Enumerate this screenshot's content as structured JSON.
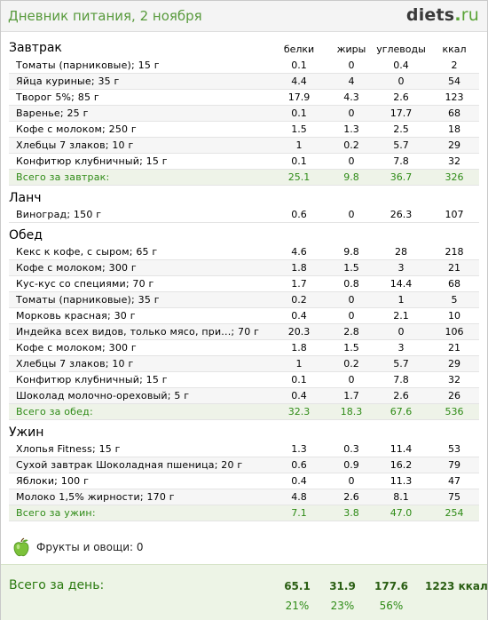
{
  "header": {
    "title": "Дневник питания, 2 ноября",
    "logo_main": "diets",
    "logo_dot": ".",
    "logo_tld": "ru"
  },
  "columns": {
    "protein": "белки",
    "fat": "жиры",
    "carbs": "углеводы",
    "kcal": "ккал"
  },
  "breakfast": {
    "title": "Завтрак",
    "rows": [
      {
        "name": "Томаты (парниковые); 15 г",
        "b": "0.1",
        "j": "0",
        "u": "0.4",
        "k": "2"
      },
      {
        "name": "Яйца куриные; 35 г",
        "b": "4.4",
        "j": "4",
        "u": "0",
        "k": "54"
      },
      {
        "name": "Творог 5%; 85 г",
        "b": "17.9",
        "j": "4.3",
        "u": "2.6",
        "k": "123"
      },
      {
        "name": "Варенье; 25 г",
        "b": "0.1",
        "j": "0",
        "u": "17.7",
        "k": "68"
      },
      {
        "name": "Кофе с молоком; 250 г",
        "b": "1.5",
        "j": "1.3",
        "u": "2.5",
        "k": "18"
      },
      {
        "name": "Хлебцы 7 злаков; 10 г",
        "b": "1",
        "j": "0.2",
        "u": "5.7",
        "k": "29"
      },
      {
        "name": "Конфитюр клубничный; 15 г",
        "b": "0.1",
        "j": "0",
        "u": "7.8",
        "k": "32"
      }
    ],
    "total": {
      "name": "Всего за завтрак:",
      "b": "25.1",
      "j": "9.8",
      "u": "36.7",
      "k": "326"
    }
  },
  "lunch": {
    "title": "Ланч",
    "rows": [
      {
        "name": "Виноград; 150 г",
        "b": "0.6",
        "j": "0",
        "u": "26.3",
        "k": "107"
      }
    ]
  },
  "dinner": {
    "title": "Обед",
    "rows": [
      {
        "name": "Кекс к кофе, с сыром; 65 г",
        "b": "4.6",
        "j": "9.8",
        "u": "28",
        "k": "218"
      },
      {
        "name": "Кофе с молоком; 300 г",
        "b": "1.8",
        "j": "1.5",
        "u": "3",
        "k": "21"
      },
      {
        "name": "Кус-кус со специями; 70 г",
        "b": "1.7",
        "j": "0.8",
        "u": "14.4",
        "k": "68"
      },
      {
        "name": "Томаты (парниковые); 35 г",
        "b": "0.2",
        "j": "0",
        "u": "1",
        "k": "5"
      },
      {
        "name": "Морковь красная; 30 г",
        "b": "0.4",
        "j": "0",
        "u": "2.1",
        "k": "10"
      },
      {
        "name": "Индейка всех видов, только мясо, при...; 70 г",
        "b": "20.3",
        "j": "2.8",
        "u": "0",
        "k": "106"
      },
      {
        "name": "Кофе с молоком; 300 г",
        "b": "1.8",
        "j": "1.5",
        "u": "3",
        "k": "21"
      },
      {
        "name": "Хлебцы 7 злаков; 10 г",
        "b": "1",
        "j": "0.2",
        "u": "5.7",
        "k": "29"
      },
      {
        "name": "Конфитюр клубничный; 15 г",
        "b": "0.1",
        "j": "0",
        "u": "7.8",
        "k": "32"
      },
      {
        "name": "Шоколад молочно-ореховый; 5 г",
        "b": "0.4",
        "j": "1.7",
        "u": "2.6",
        "k": "26"
      }
    ],
    "total": {
      "name": "Всего за обед:",
      "b": "32.3",
      "j": "18.3",
      "u": "67.6",
      "k": "536"
    }
  },
  "supper": {
    "title": "Ужин",
    "rows": [
      {
        "name": "Хлопья Fitness; 15 г",
        "b": "1.3",
        "j": "0.3",
        "u": "11.4",
        "k": "53"
      },
      {
        "name": "Сухой завтрак Шоколадная пшеница; 20 г",
        "b": "0.6",
        "j": "0.9",
        "u": "16.2",
        "k": "79"
      },
      {
        "name": "Яблоки; 100 г",
        "b": "0.4",
        "j": "0",
        "u": "11.3",
        "k": "47"
      },
      {
        "name": "Молоко 1,5% жирности; 170 г",
        "b": "4.8",
        "j": "2.6",
        "u": "8.1",
        "k": "75"
      }
    ],
    "total": {
      "name": "Всего за ужин:",
      "b": "7.1",
      "j": "3.8",
      "u": "47.0",
      "k": "254"
    }
  },
  "fruits": {
    "icon": "apple-icon",
    "label": "Фрукты и овощи: 0"
  },
  "day": {
    "label": "Всего за день:",
    "b": "65.1",
    "j": "31.9",
    "u": "177.6",
    "k": "1223 ккал",
    "bp": "21%",
    "jp": "23%",
    "up": "56%"
  },
  "colors": {
    "accent_green": "#589a3c",
    "total_green": "#2e8b16",
    "total_bg": "#eef3e8"
  }
}
